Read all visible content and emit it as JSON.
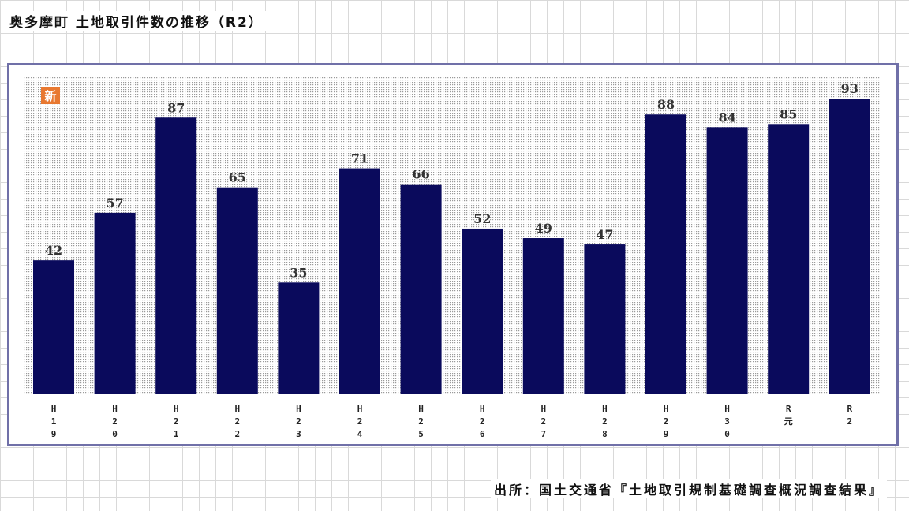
{
  "page": {
    "title": "奥多摩町 土地取引件数の推移（R2）",
    "source": "出所：国土交通省『土地取引規制基礎調査概況調査結果』"
  },
  "chart_data": {
    "type": "bar",
    "title": "奥多摩町 土地取引件数の推移（R2）",
    "badge": "新",
    "categories": [
      [
        "H",
        "1",
        "9"
      ],
      [
        "H",
        "2",
        "0"
      ],
      [
        "H",
        "2",
        "1"
      ],
      [
        "H",
        "2",
        "2"
      ],
      [
        "H",
        "2",
        "3"
      ],
      [
        "H",
        "2",
        "4"
      ],
      [
        "H",
        "2",
        "5"
      ],
      [
        "H",
        "2",
        "6"
      ],
      [
        "H",
        "2",
        "7"
      ],
      [
        "H",
        "2",
        "8"
      ],
      [
        "H",
        "2",
        "9"
      ],
      [
        "H",
        "3",
        "0"
      ],
      [
        "R",
        "元"
      ],
      [
        "R",
        "2"
      ]
    ],
    "values": [
      42,
      57,
      87,
      65,
      35,
      71,
      66,
      52,
      49,
      47,
      88,
      84,
      85,
      93
    ],
    "ylim": [
      0,
      95
    ],
    "grid": false,
    "colors": {
      "bar": "#0a0a5c",
      "plot_dots": "#9a9a9a",
      "badge": "#e87830",
      "frame": "#7070a8"
    }
  }
}
